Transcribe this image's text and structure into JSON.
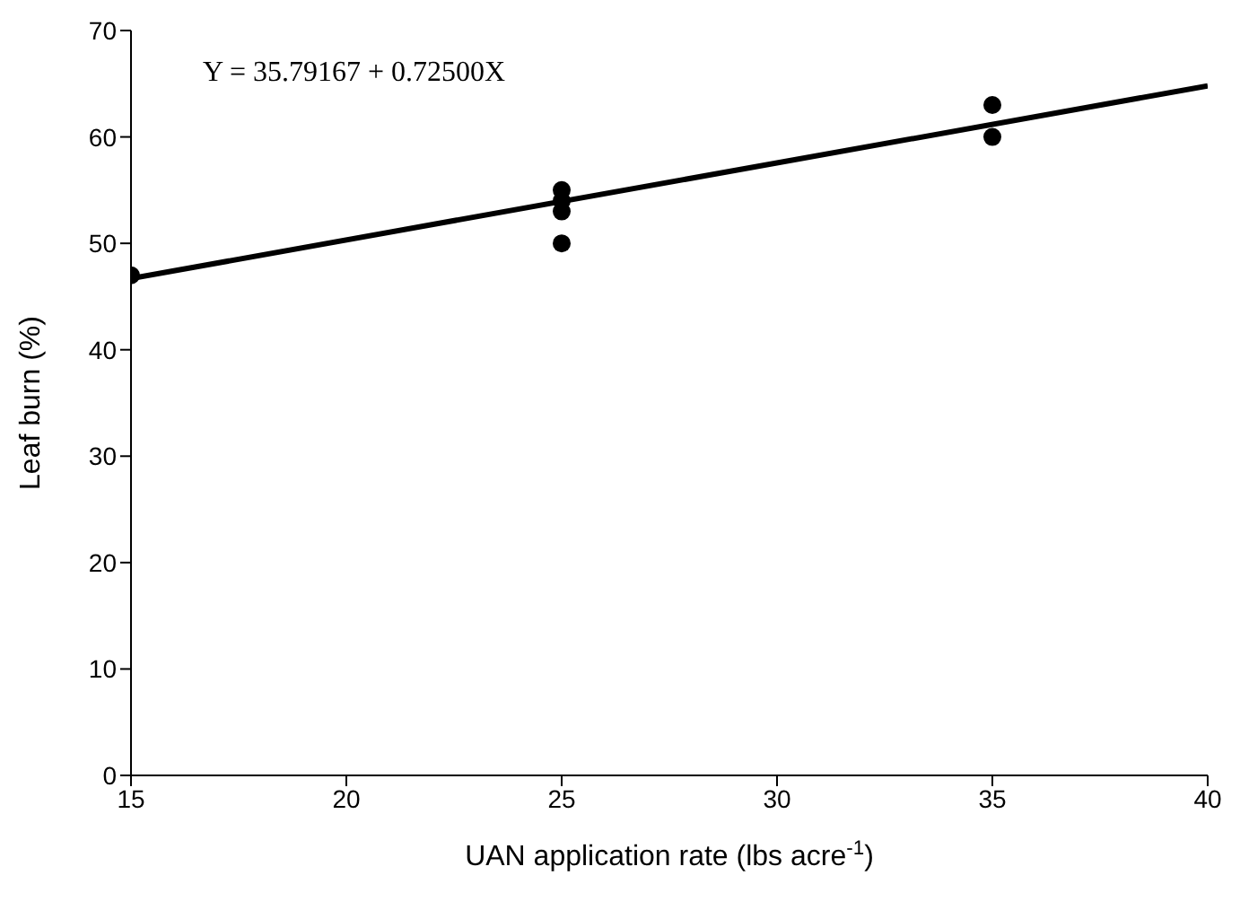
{
  "chart_data": {
    "type": "scatter",
    "xlabel": "UAN application rate (lbs acre$^{-1}$)",
    "ylabel": "Leaf burn (%)",
    "annotations": [
      "Y = 35.79167 + 0.72500X"
    ],
    "xlim": [
      15,
      40
    ],
    "xticks": [
      15,
      20,
      25,
      30,
      35,
      40
    ],
    "ylim": [
      0,
      70
    ],
    "yticks": [
      0,
      10,
      20,
      30,
      40,
      50,
      60,
      70
    ],
    "grid": false,
    "legend": false,
    "marker": "circle",
    "series": [
      {
        "color": "#000000",
        "x": [
          15,
          25,
          25,
          25,
          25,
          35,
          35
        ],
        "values": [
          47,
          55,
          54,
          53,
          50,
          63,
          60
        ]
      },
      {
        "type": "line",
        "color": "#000000",
        "x": [
          15,
          40
        ],
        "values": [
          46.7,
          64.8
        ],
        "marker": "none",
        "line_style": "solid"
      }
    ]
  }
}
